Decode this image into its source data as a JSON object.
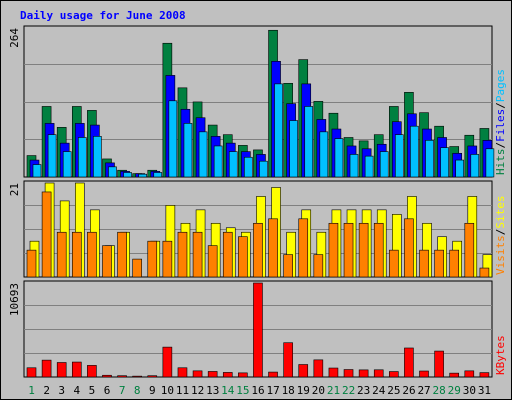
{
  "chart_data": [
    {
      "type": "bar",
      "title": "Daily usage for June 2008",
      "categories": [
        "1",
        "2",
        "3",
        "4",
        "5",
        "6",
        "7",
        "8",
        "9",
        "10",
        "11",
        "12",
        "13",
        "14",
        "15",
        "16",
        "17",
        "18",
        "19",
        "20",
        "21",
        "22",
        "23",
        "24",
        "25",
        "26",
        "27",
        "28",
        "29",
        "30",
        "31"
      ],
      "weekend_days": [
        "1",
        "7",
        "8",
        "14",
        "15",
        "21",
        "22",
        "28",
        "29"
      ],
      "ymax_label": "264",
      "ylim": [
        0,
        264
      ],
      "grid": true,
      "series": [
        {
          "name": "Hits",
          "color": "#008040",
          "values": [
            38,
            125,
            88,
            125,
            118,
            32,
            12,
            6,
            12,
            237,
            158,
            133,
            92,
            75,
            56,
            48,
            260,
            166,
            208,
            134,
            113,
            70,
            64,
            75,
            125,
            150,
            114,
            90,
            54,
            74,
            86
          ]
        },
        {
          "name": "Files",
          "color": "#0000ff",
          "values": [
            30,
            95,
            60,
            95,
            92,
            25,
            10,
            6,
            10,
            180,
            120,
            105,
            72,
            60,
            45,
            40,
            205,
            130,
            165,
            102,
            85,
            55,
            50,
            58,
            98,
            112,
            85,
            70,
            42,
            55,
            65
          ]
        },
        {
          "name": "Pages",
          "color": "#00c0ff",
          "values": [
            22,
            75,
            45,
            70,
            72,
            18,
            8,
            5,
            8,
            135,
            95,
            80,
            55,
            45,
            35,
            28,
            165,
            100,
            125,
            80,
            68,
            40,
            37,
            45,
            75,
            90,
            65,
            52,
            30,
            40,
            50
          ]
        }
      ],
      "ylabel_parts": [
        "Pages",
        "Files",
        "Hits"
      ]
    },
    {
      "type": "bar",
      "categories": [
        "1",
        "2",
        "3",
        "4",
        "5",
        "6",
        "7",
        "8",
        "9",
        "10",
        "11",
        "12",
        "13",
        "14",
        "15",
        "16",
        "17",
        "18",
        "19",
        "20",
        "21",
        "22",
        "23",
        "24",
        "25",
        "26",
        "27",
        "28",
        "29",
        "30",
        "31"
      ],
      "ymax_label": "21",
      "ylim": [
        0,
        21
      ],
      "grid": true,
      "series": [
        {
          "name": "Visits",
          "color": "#ffff00",
          "values": [
            8,
            21,
            17,
            21,
            15,
            7,
            10,
            0,
            8,
            16,
            12,
            15,
            12,
            11,
            10,
            18,
            20,
            10,
            15,
            10,
            15,
            15,
            15,
            15,
            14,
            18,
            12,
            9,
            8,
            18,
            5
          ]
        },
        {
          "name": "Sites",
          "color": "#ff8000",
          "values": [
            6,
            19,
            10,
            10,
            10,
            7,
            10,
            4,
            8,
            8,
            10,
            10,
            7,
            10,
            9,
            12,
            13,
            5,
            13,
            5,
            12,
            12,
            12,
            12,
            6,
            13,
            6,
            6,
            6,
            12,
            2
          ]
        }
      ],
      "ylabel_parts": [
        "Sites",
        "Visits"
      ]
    },
    {
      "type": "bar",
      "categories": [
        "1",
        "2",
        "3",
        "4",
        "5",
        "6",
        "7",
        "8",
        "9",
        "10",
        "11",
        "12",
        "13",
        "14",
        "15",
        "16",
        "17",
        "18",
        "19",
        "20",
        "21",
        "22",
        "23",
        "24",
        "25",
        "26",
        "27",
        "28",
        "29",
        "30",
        "31"
      ],
      "ymax_label": "10693",
      "ylim": [
        0,
        10693
      ],
      "grid": true,
      "series": [
        {
          "name": "KBytes",
          "color": "#ff0000",
          "values": [
            1050,
            1920,
            1650,
            1700,
            1320,
            200,
            150,
            100,
            150,
            3400,
            1050,
            700,
            630,
            520,
            470,
            10693,
            560,
            3900,
            1420,
            1950,
            1020,
            850,
            810,
            820,
            620,
            3300,
            680,
            2950,
            440,
            700,
            500
          ]
        }
      ],
      "ylabel_parts": [
        "KBytes"
      ]
    }
  ]
}
